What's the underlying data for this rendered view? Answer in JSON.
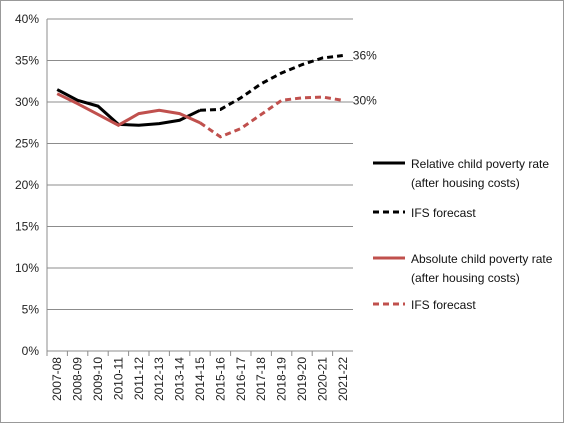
{
  "chart_data": {
    "type": "line",
    "categories": [
      "2007-08",
      "2008-09",
      "2009-10",
      "2010-11",
      "2011-12",
      "2012-13",
      "2013-14",
      "2014-15",
      "2015-16",
      "2016-17",
      "2017-18",
      "2018-19",
      "2019-20",
      "2020-21",
      "2021-22"
    ],
    "series": [
      {
        "name": "Relative child poverty rate (after housing costs)",
        "color": "#000000",
        "dashed": false,
        "values": [
          31.5,
          30.2,
          29.5,
          27.3,
          27.2,
          27.4,
          27.8,
          29.0,
          null,
          null,
          null,
          null,
          null,
          null,
          null
        ]
      },
      {
        "name": "IFS forecast",
        "color": "#000000",
        "dashed": true,
        "values": [
          null,
          null,
          null,
          null,
          null,
          null,
          null,
          29.0,
          29.1,
          30.5,
          32.2,
          33.5,
          34.5,
          35.3,
          35.6
        ],
        "value_labels": [
          null,
          null,
          null,
          null,
          null,
          null,
          null,
          null,
          null,
          null,
          null,
          null,
          null,
          null,
          "36%"
        ]
      },
      {
        "name": "Absolute child poverty rate (after housing costs)",
        "color": "#c0504d",
        "dashed": false,
        "values": [
          31.0,
          29.8,
          28.5,
          27.2,
          28.6,
          29.0,
          28.6,
          27.5,
          null,
          null,
          null,
          null,
          null,
          null,
          null
        ]
      },
      {
        "name": "IFS forecast",
        "color": "#c0504d",
        "dashed": true,
        "values": [
          null,
          null,
          null,
          null,
          null,
          null,
          null,
          27.5,
          25.8,
          26.8,
          28.5,
          30.2,
          30.5,
          30.6,
          30.2
        ],
        "value_labels": [
          null,
          null,
          null,
          null,
          null,
          null,
          null,
          null,
          null,
          null,
          null,
          null,
          null,
          null,
          "30%"
        ]
      }
    ],
    "ylim": [
      0,
      40
    ],
    "yticks": [
      {
        "value": 0,
        "label": "0%"
      },
      {
        "value": 5,
        "label": "5%"
      },
      {
        "value": 10,
        "label": "10%"
      },
      {
        "value": 15,
        "label": "15%"
      },
      {
        "value": 20,
        "label": "20%"
      },
      {
        "value": 25,
        "label": "25%"
      },
      {
        "value": 30,
        "label": "30%"
      },
      {
        "value": 35,
        "label": "35%"
      },
      {
        "value": 40,
        "label": "40%"
      }
    ],
    "grid": true,
    "legend": "right"
  }
}
